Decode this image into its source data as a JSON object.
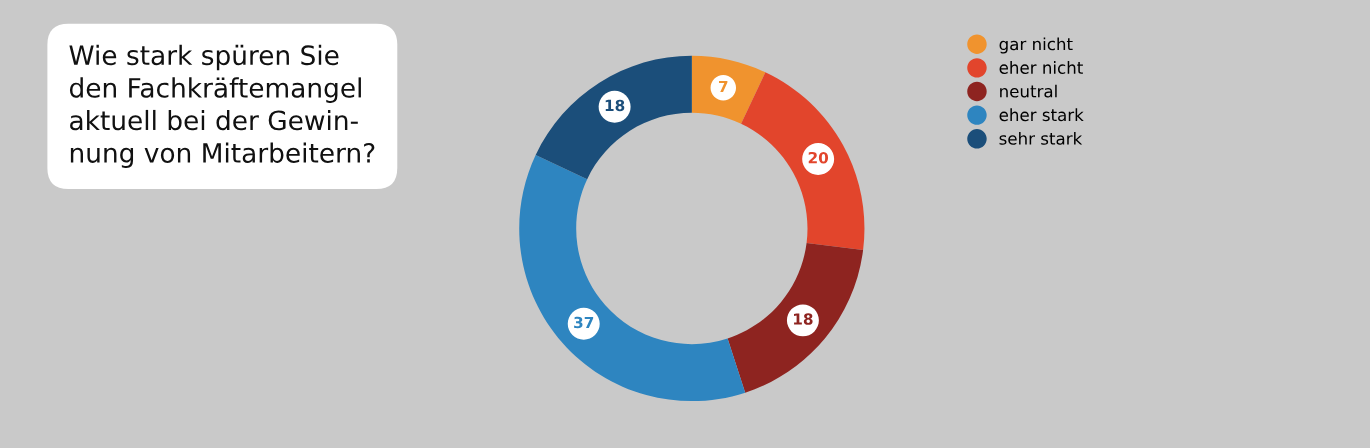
{
  "chart_data": {
    "type": "donut",
    "title": "Wie stark spüren Sie\nden Fachkräftemangel\naktuell bei der Gewin-\nnung von Mitarbeitern?",
    "categories": [
      "gar nicht",
      "eher nicht",
      "neutral",
      "eher stark",
      "sehr stark"
    ],
    "values": [
      7,
      20,
      18,
      37,
      18
    ],
    "colors": [
      "#f0932e",
      "#e2452c",
      "#8e2420",
      "#2e85c0",
      "#1b4e7a"
    ],
    "data_labels": true,
    "legend": "right"
  }
}
